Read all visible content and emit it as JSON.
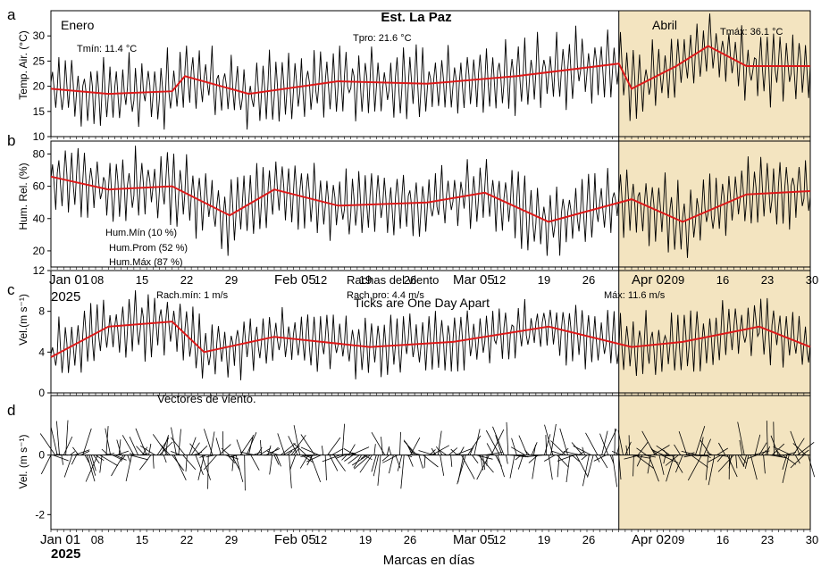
{
  "title": "Est. La Paz",
  "xlabel": "Marcas en días",
  "highlight_color": "#f3e4c0",
  "series_color": "#000000",
  "mean_color": "#dd1a1a",
  "chart_data": [
    {
      "type": "line",
      "panel_letter": "a",
      "ylabel": "Temp. Air. (°C)",
      "ylim": [
        10,
        35
      ],
      "yticks": [
        "10",
        "15",
        "20",
        "25",
        "30"
      ],
      "x_range": [
        "2025-01-01",
        "2025-04-30"
      ],
      "annotations": [
        "Enero",
        "Tmín:  11.4 °C",
        "Tpro:  21.6 °C",
        "Abril",
        "Tmáx:  36.1 °C"
      ],
      "series": [
        {
          "role": "series",
          "daily_range": {
            "min": 11.4,
            "max": 36.1
          }
        },
        {
          "role": "mean",
          "x": [
            "2025-01-01",
            "2025-01-10",
            "2025-01-20",
            "2025-01-22",
            "2025-02-01",
            "2025-02-15",
            "2025-03-01",
            "2025-03-15",
            "2025-03-31",
            "2025-04-02",
            "2025-04-09",
            "2025-04-14",
            "2025-04-20",
            "2025-04-30"
          ],
          "values": [
            19.5,
            18.5,
            19,
            22,
            18.5,
            21,
            20.5,
            22,
            24.5,
            19.5,
            24,
            28,
            24,
            24
          ]
        }
      ]
    },
    {
      "type": "line",
      "panel_letter": "b",
      "ylabel": "Hum. Rel. (%)",
      "ylim": [
        10,
        88
      ],
      "yticks": [
        "20",
        "40",
        "60",
        "80"
      ],
      "annotations": [
        "Hum.Mín (10 %)",
        "Hum.Prom (52 %)",
        "Hum.Máx (87 %)"
      ],
      "series": [
        {
          "role": "series",
          "daily_range": {
            "min": 10,
            "max": 87
          }
        },
        {
          "role": "mean",
          "x": [
            "2025-01-01",
            "2025-01-10",
            "2025-01-20",
            "2025-01-29",
            "2025-02-05",
            "2025-02-15",
            "2025-03-01",
            "2025-03-10",
            "2025-03-20",
            "2025-04-02",
            "2025-04-10",
            "2025-04-20",
            "2025-04-30"
          ],
          "values": [
            66,
            58,
            60,
            42,
            58,
            48,
            50,
            56,
            38,
            52,
            38,
            55,
            57
          ]
        }
      ]
    },
    {
      "type": "line",
      "panel_letter": "c",
      "ylabel": "Vel.(m s⁻¹)",
      "ylim": [
        0,
        12
      ],
      "yticks": [
        "0",
        "4",
        "8",
        "12"
      ],
      "x_tick_labels": [
        "Jan 01",
        "08",
        "15",
        "22",
        "29",
        "Feb 05",
        "12",
        "19",
        "26",
        "Mar 05",
        "12",
        "19",
        "26",
        "Apr 02",
        "09",
        "16",
        "23",
        "30"
      ],
      "x_year": "2025",
      "annotations": [
        "Rachas del viento",
        "Rach.mín: 1 m/s",
        "Rach.pro: 4.4 m/s",
        "Máx: 11.6 m/s",
        "Ticks are One Day Apart"
      ],
      "series": [
        {
          "role": "series",
          "daily_range": {
            "min": 1,
            "max": 11.6
          }
        },
        {
          "role": "mean",
          "x": [
            "2025-01-01",
            "2025-01-10",
            "2025-01-20",
            "2025-01-25",
            "2025-02-05",
            "2025-02-20",
            "2025-03-05",
            "2025-03-20",
            "2025-04-02",
            "2025-04-10",
            "2025-04-22",
            "2025-04-30"
          ],
          "values": [
            3.5,
            6.5,
            7,
            4,
            5.5,
            4.5,
            5,
            6.5,
            4.5,
            5,
            6.5,
            4.5
          ]
        }
      ]
    },
    {
      "type": "line",
      "panel_letter": "d",
      "ylabel": "Vel. (m s⁻¹)",
      "ylim": [
        -2.5,
        2
      ],
      "yticks": [
        "-2",
        "0"
      ],
      "x_tick_labels": [
        "Jan 01",
        "08",
        "15",
        "22",
        "29",
        "Feb 05",
        "12",
        "19",
        "26",
        "Mar 05",
        "12",
        "19",
        "26",
        "Apr 02",
        "09",
        "16",
        "23",
        "30"
      ],
      "x_year": "2025",
      "annotations": [
        "Vectores de viento."
      ],
      "series": [
        {
          "role": "wind-vectors",
          "v_range": {
            "min": -2.4,
            "max": 1.8
          }
        }
      ]
    }
  ]
}
